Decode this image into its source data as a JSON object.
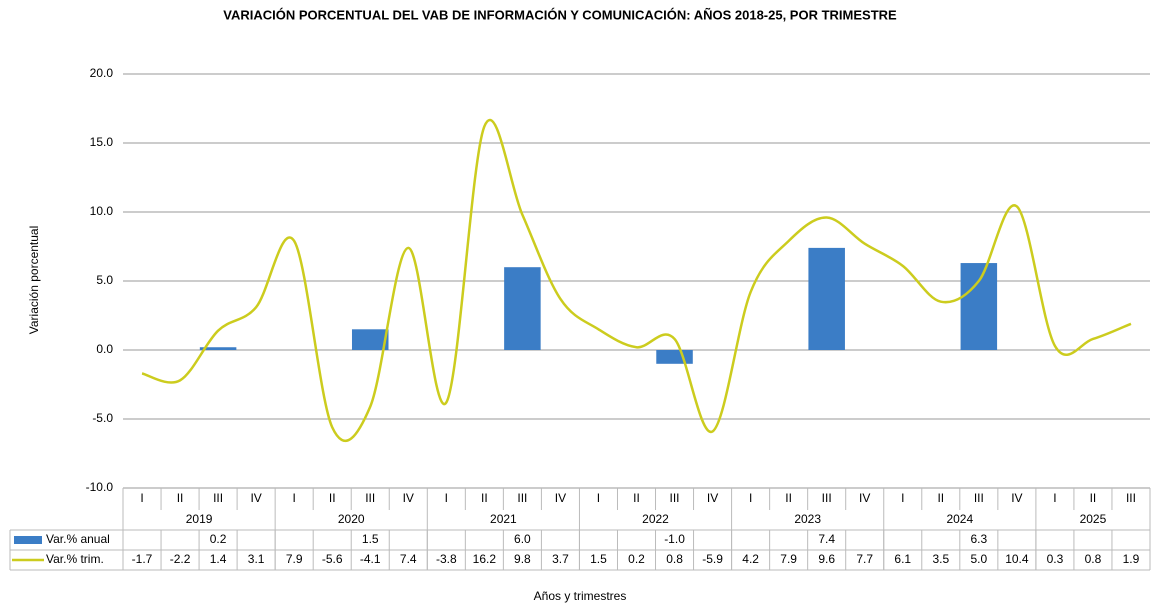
{
  "chart_data": {
    "type": "bar-line",
    "title": "VARIACIÓN PORCENTUAL DEL VAB DE INFORMACIÓN Y COMUNICACIÓN: AÑOS 2018-25, POR TRIMESTRE",
    "x_label": "Años y trimestres",
    "y_label": "Variación porcentual",
    "categories": [
      "I",
      "II",
      "III",
      "IV",
      "I",
      "II",
      "III",
      "IV",
      "I",
      "II",
      "III",
      "IV",
      "I",
      "II",
      "III",
      "IV",
      "I",
      "II",
      "III",
      "IV",
      "I",
      "II",
      "III",
      "IV",
      "I",
      "II",
      "III"
    ],
    "year_labels": [
      "2019",
      "2020",
      "2021",
      "2022",
      "2023",
      "2024",
      "2025"
    ],
    "ylim": [
      -10,
      20
    ],
    "yticks": [
      {
        "value": -10,
        "label": "-10.0"
      },
      {
        "value": -5,
        "label": "-5.0"
      },
      {
        "value": 0,
        "label": "0.0"
      },
      {
        "value": 5,
        "label": "5.0"
      },
      {
        "value": 10,
        "label": "10.0"
      },
      {
        "value": 15,
        "label": "15.0"
      },
      {
        "value": 20,
        "label": "20.0"
      }
    ],
    "grid": true,
    "series": [
      {
        "name": "Var.% anual",
        "type": "bar",
        "color": "#3b7dc6",
        "values": [
          null,
          null,
          0.2,
          null,
          null,
          null,
          1.5,
          null,
          null,
          null,
          6.0,
          null,
          null,
          null,
          -1.0,
          null,
          null,
          null,
          7.4,
          null,
          null,
          null,
          6.3,
          null,
          null,
          null,
          null
        ],
        "value_labels": [
          null,
          null,
          "0.2",
          null,
          null,
          null,
          "1.5",
          null,
          null,
          null,
          "6.0",
          null,
          null,
          null,
          "-1.0",
          null,
          null,
          null,
          "7.4",
          null,
          null,
          null,
          "6.3",
          null,
          null,
          null,
          null
        ]
      },
      {
        "name": "Var.% trim.",
        "type": "line",
        "color": "#cccc1e",
        "values": [
          -1.7,
          -2.2,
          1.4,
          3.1,
          7.9,
          -5.6,
          -4.1,
          7.4,
          -3.8,
          16.2,
          9.8,
          3.7,
          1.5,
          0.2,
          0.8,
          -5.9,
          4.2,
          7.9,
          9.6,
          7.7,
          6.1,
          3.5,
          5.0,
          10.4,
          0.3,
          0.8,
          1.9
        ],
        "value_labels": [
          "-1.7",
          "-2.2",
          "1.4",
          "3.1",
          "7.9",
          "-5.6",
          "-4.1",
          "7.4",
          "-3.8",
          "16.2",
          "9.8",
          "3.7",
          "1.5",
          "0.2",
          "0.8",
          "-5.9",
          "4.2",
          "7.9",
          "9.6",
          "7.7",
          "6.1",
          "3.5",
          "5.0",
          "10.4",
          "0.3",
          "0.8",
          "1.9"
        ]
      }
    ]
  }
}
